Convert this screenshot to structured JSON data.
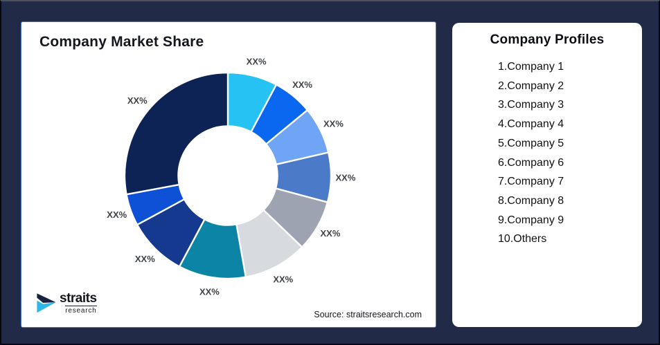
{
  "canvas": {
    "background": "#212A47",
    "border_color": "#06080e"
  },
  "left_panel": {
    "title": "Company Market Share",
    "border_color": "#4776D6",
    "source": "Source: straitsresearch.com",
    "logo": {
      "primary": "straits",
      "secondary": "research",
      "navy": "#16223F",
      "cyan": "#2EB8EA"
    }
  },
  "right_panel": {
    "title": "Company Profiles",
    "items": [
      "1.Company 1",
      "2.Company 2",
      "3.Company 3",
      "4.Company 4",
      "5.Company 5",
      "6.Company 6",
      "7.Company 7",
      "8.Company 8",
      "9.Company 9",
      "10.Others"
    ]
  },
  "chart_data": {
    "type": "pie",
    "subtype": "donut",
    "title": "Company Market Share",
    "inner_radius_ratio": 0.48,
    "label_color": "#3F4246",
    "gap_color": "#ffffff",
    "note": "all slice data labels are placeholder text XX%",
    "slices": [
      {
        "name": "Company 1",
        "label": "XX%",
        "pct_est": 7.8,
        "start_deg": 0,
        "end_deg": 28,
        "color": "#26C2F3"
      },
      {
        "name": "Company 2",
        "label": "XX%",
        "pct_est": 6.3,
        "start_deg": 28,
        "end_deg": 50.5,
        "color": "#0A67EF"
      },
      {
        "name": "Company 3",
        "label": "XX%",
        "pct_est": 7.4,
        "start_deg": 50.5,
        "end_deg": 77,
        "color": "#70A4F4"
      },
      {
        "name": "Company 4",
        "label": "XX%",
        "pct_est": 7.8,
        "start_deg": 77,
        "end_deg": 105,
        "color": "#4B7AC9"
      },
      {
        "name": "Company 5",
        "label": "XX%",
        "pct_est": 8.0,
        "start_deg": 105,
        "end_deg": 134,
        "color": "#9DA3B0"
      },
      {
        "name": "Company 6",
        "label": "XX%",
        "pct_est": 10.0,
        "start_deg": 134,
        "end_deg": 170,
        "color": "#D7DADF"
      },
      {
        "name": "Company 7",
        "label": "XX%",
        "pct_est": 10.6,
        "start_deg": 170,
        "end_deg": 208,
        "color": "#0B84A5"
      },
      {
        "name": "Company 8",
        "label": "XX%",
        "pct_est": 9.3,
        "start_deg": 208,
        "end_deg": 241.5,
        "color": "#14398E"
      },
      {
        "name": "Company 9",
        "label": "XX%",
        "pct_est": 5.0,
        "start_deg": 241.5,
        "end_deg": 259.5,
        "color": "#0E50D6"
      },
      {
        "name": "Others",
        "label": "XX%",
        "pct_est": 27.8,
        "start_deg": 259.5,
        "end_deg": 360,
        "color": "#0D2355"
      }
    ]
  }
}
